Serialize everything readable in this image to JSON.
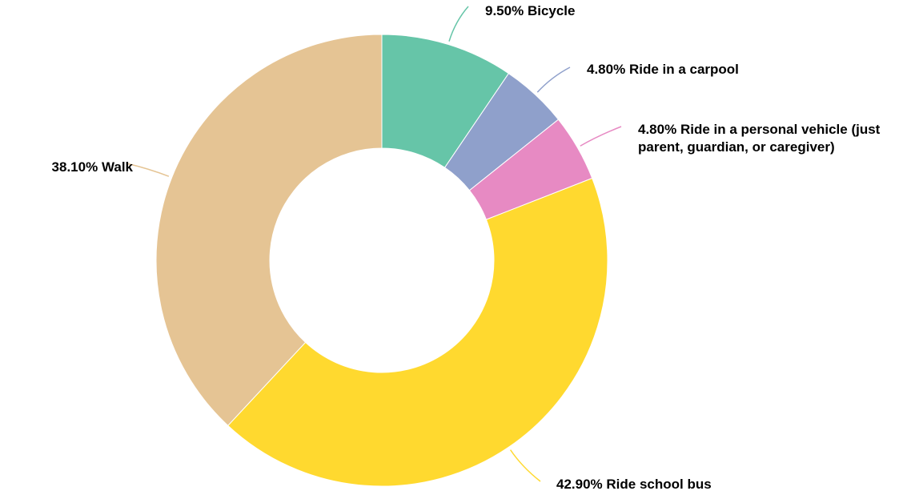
{
  "chart_data": {
    "type": "pie",
    "categories": [
      "Bicycle",
      "Ride in a carpool",
      "Ride in a personal vehicle (just parent, guardian, or caregiver)",
      "Ride school bus",
      "Walk"
    ],
    "values": [
      9.5,
      4.8,
      4.8,
      42.9,
      38.1
    ],
    "value_labels": [
      "9.50%",
      "4.80%",
      "4.80%",
      "42.90%",
      "38.10%"
    ],
    "colors": [
      "#66c5a8",
      "#8fa0cb",
      "#e78ac3",
      "#ffd92f",
      "#e5c494"
    ],
    "donut": true
  }
}
